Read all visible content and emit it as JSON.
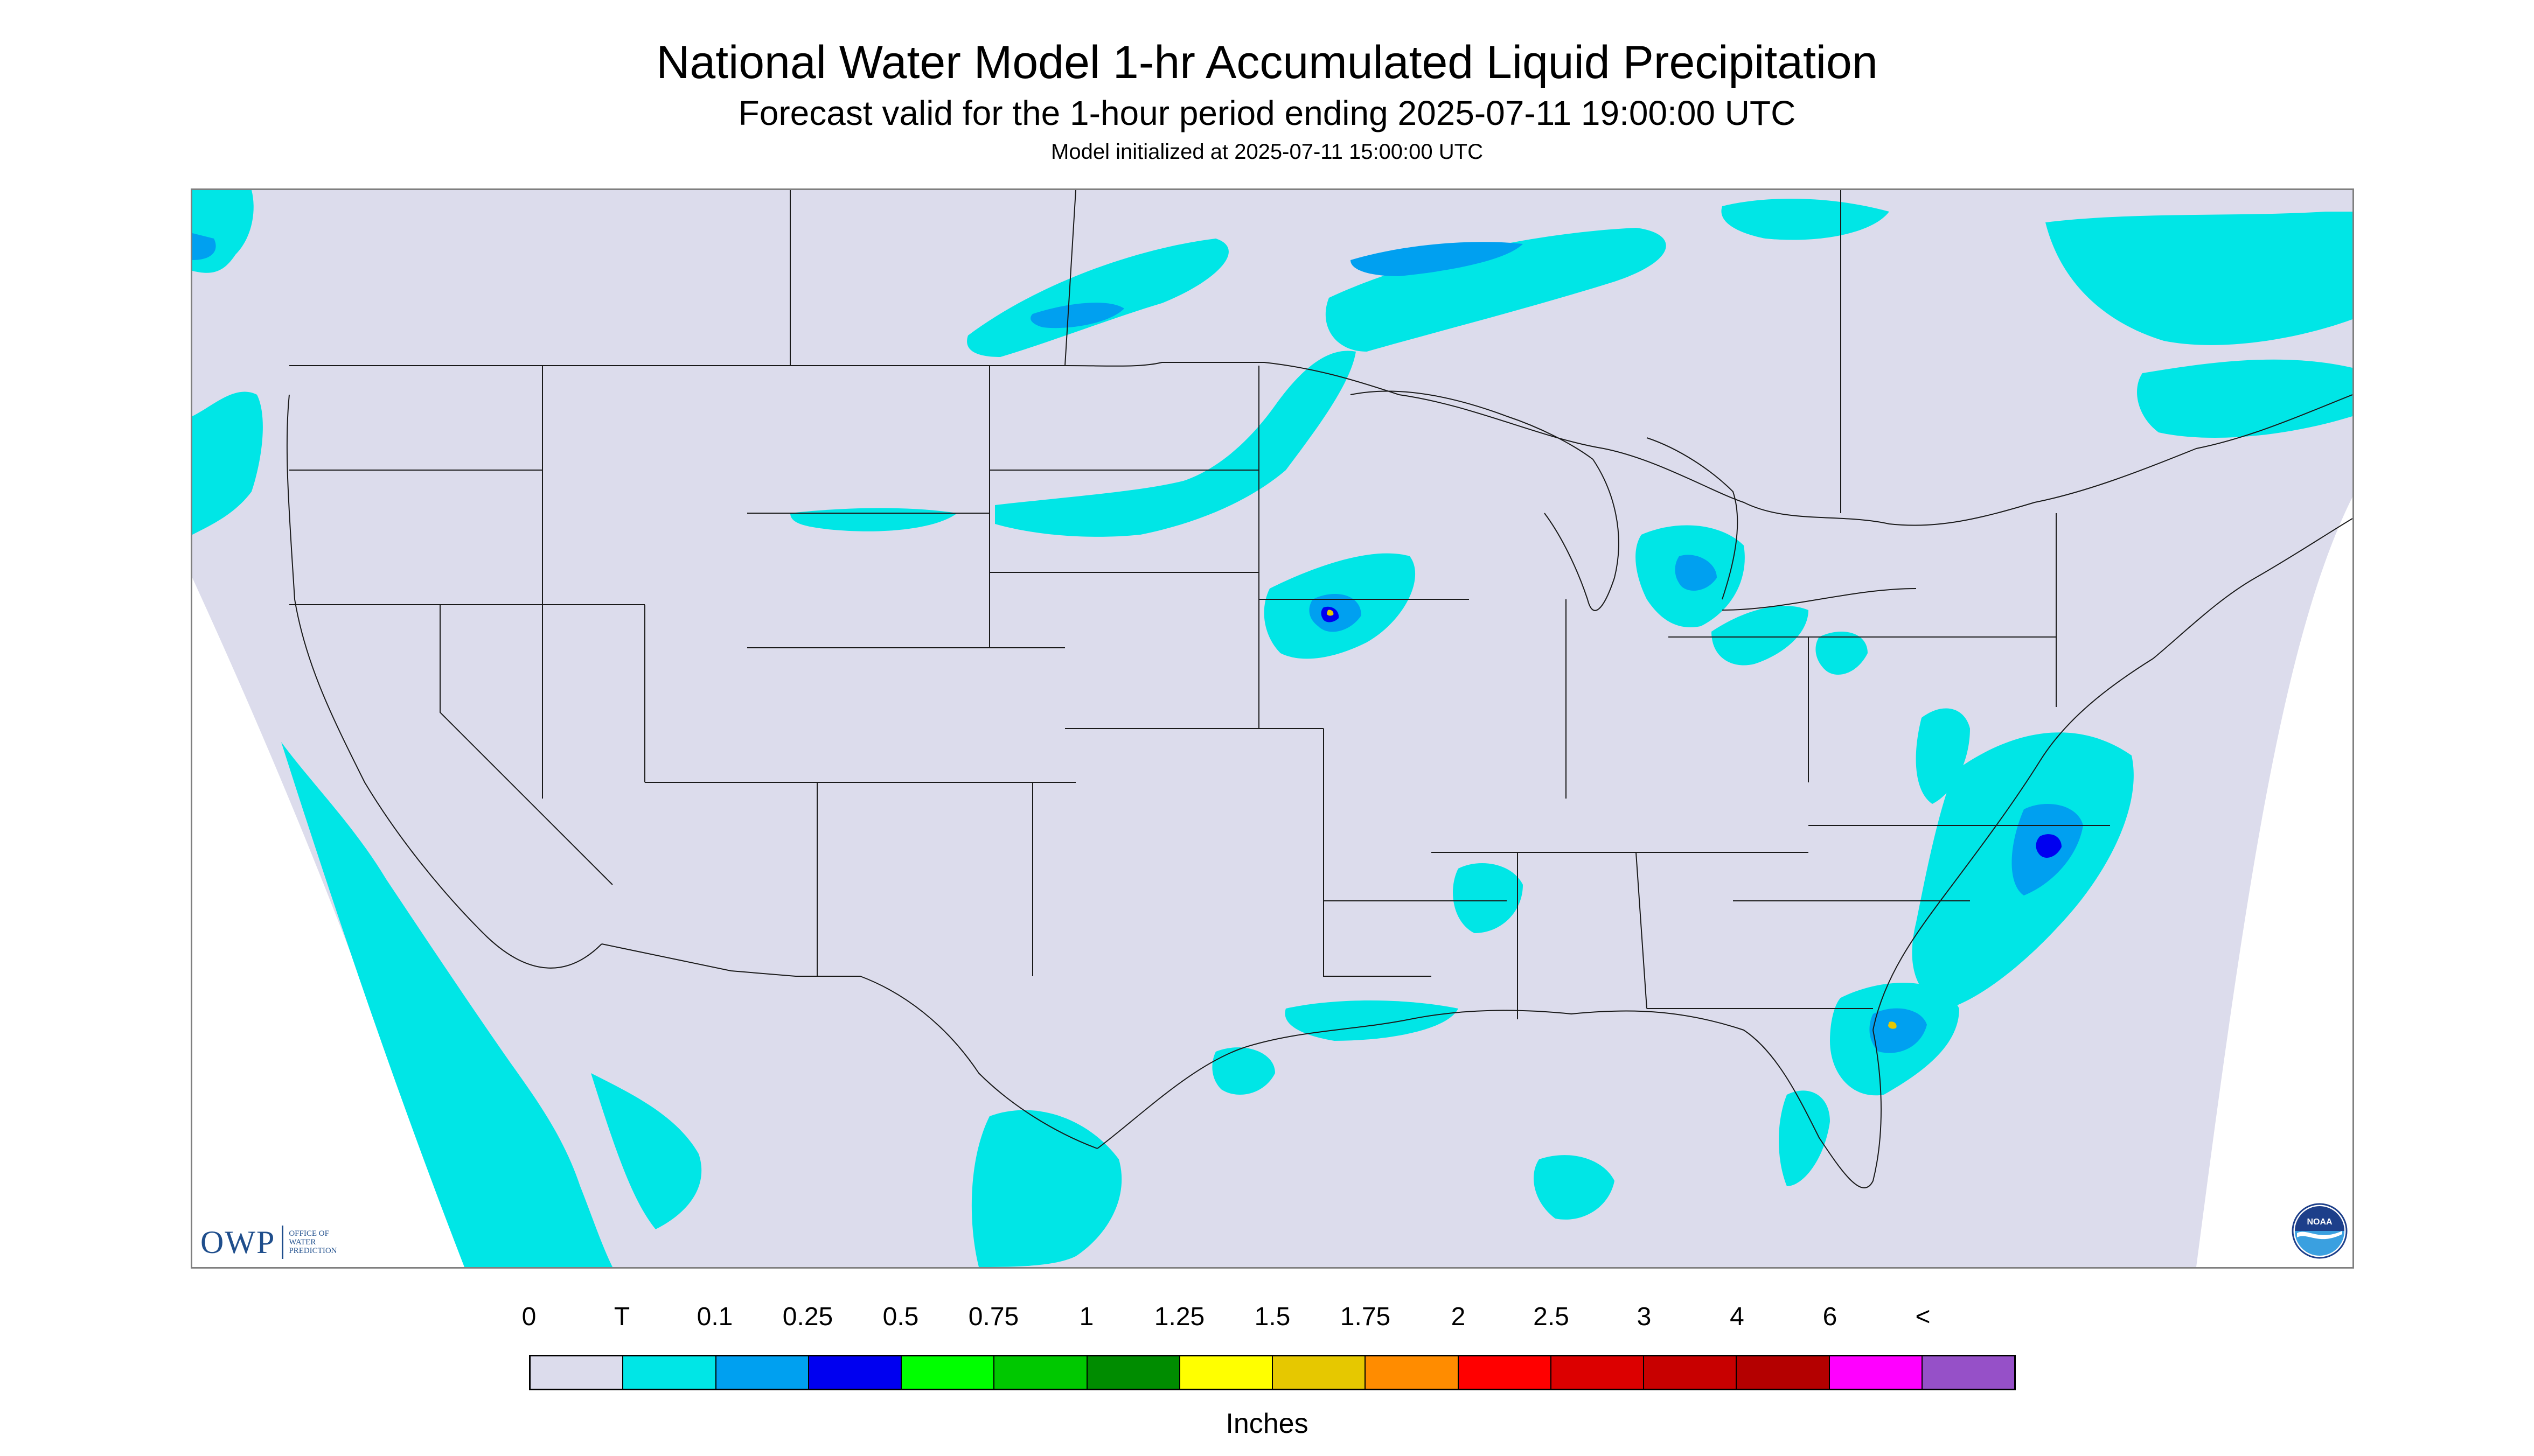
{
  "header": {
    "title": "National Water Model 1-hr Accumulated Liquid Precipitation",
    "subtitle": "Forecast valid for the 1-hour period ending 2025-07-11 19:00:00 UTC",
    "init_line": "Model initialized at 2025-07-11 15:00:00 UTC"
  },
  "map": {
    "background_color": "#dcdcec",
    "outside_color": "#ffffff",
    "boundary_color": "#1a1a1a",
    "precip_colors": {
      "trace": "#00e6e6",
      "light": "#00a0f0",
      "moderate": "#0000f0",
      "heavy": "#e6c800"
    }
  },
  "logos": {
    "owp": {
      "mark": "OWP",
      "sub_lines": [
        "OFFICE OF",
        "WATER",
        "PREDICTION"
      ]
    },
    "noaa": {
      "icon": "noaa-seal-icon",
      "mark": "NOAA"
    }
  },
  "legend": {
    "tick_labels": [
      "0",
      "T",
      "0.1",
      "0.25",
      "0.5",
      "0.75",
      "1",
      "1.25",
      "1.5",
      "1.75",
      "2",
      "2.5",
      "3",
      "4",
      "6",
      "<"
    ],
    "colors": [
      "#dcdcec",
      "#00e6e6",
      "#00a0f0",
      "#0000f0",
      "#00ff00",
      "#00c800",
      "#008c00",
      "#ffff00",
      "#e6c800",
      "#ff8c00",
      "#ff0000",
      "#dc0000",
      "#c80000",
      "#b40000",
      "#ff00ff",
      "#9650c8"
    ],
    "units": "Inches"
  }
}
